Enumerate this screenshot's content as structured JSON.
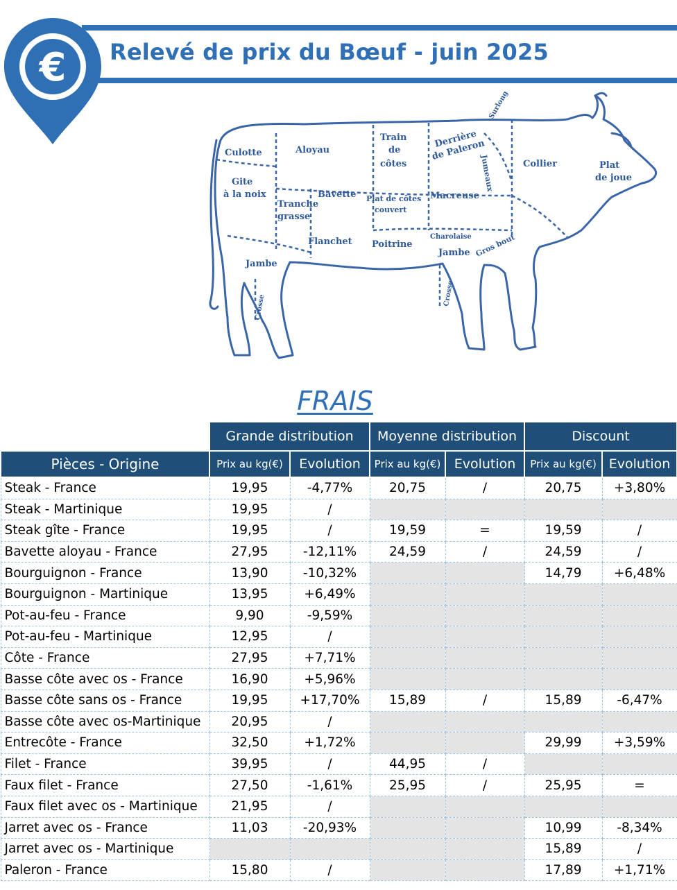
{
  "header": {
    "title": "Relevé de prix du Bœuf - juin 2025",
    "icon": "euro-pin-icon",
    "icon_symbol": "€",
    "accent_color": "#2e6fb6",
    "dark_header_color": "#1f4e79"
  },
  "cow_diagram": {
    "labels": {
      "culotte": "Culotte",
      "aloyau": "Aloyau",
      "train_de_cotes_1": "Train",
      "train_de_cotes_2": "de",
      "train_de_cotes_3": "côtes",
      "derriere_1": "Derrière",
      "derriere_2": "de Paleron",
      "surlonge": "Surlonge",
      "collier": "Collier",
      "plat_de_joue_1": "Plat",
      "plat_de_joue_2": "de joue",
      "gite_1": "Gite",
      "gite_2": "à la noix",
      "tranche_1": "Tranche",
      "tranche_2": "grasse",
      "bavette": "Bavette",
      "plat_de_cotes_1": "Plat de côtes",
      "plat_de_cotes_2": "couvert",
      "macreuse": "Macreuse",
      "jumeaux": "Jumeaux",
      "flanchet": "Flanchet",
      "poitrine": "Poitrine",
      "charolaise": "Charolaise",
      "gros_bout": "Gros bout",
      "jambe_rear": "Jambe",
      "jambe_front": "Jambe",
      "crosse_rear": "Crosse",
      "crosse_front": "Crosse"
    }
  },
  "section_title": "FRAIS",
  "table": {
    "groups": [
      "Grande distribution",
      "Moyenne distribution",
      "Discount"
    ],
    "piece_header": "Pièces - Origine",
    "price_header": "Prix au kg(€)",
    "evolution_header": "Evolution",
    "rows": [
      {
        "name": "Steak - France",
        "gd_prix": "19,95",
        "gd_evo": "-4,77%",
        "md_prix": "20,75",
        "md_evo": "/",
        "d_prix": "20,75",
        "d_evo": "+3,80%"
      },
      {
        "name": "Steak - Martinique",
        "gd_prix": "19,95",
        "gd_evo": "/",
        "md_prix": "",
        "md_evo": "",
        "d_prix": "",
        "d_evo": ""
      },
      {
        "name": "Steak gîte  - France",
        "gd_prix": "19,95",
        "gd_evo": "/",
        "md_prix": "19,59",
        "md_evo": "=",
        "d_prix": "19,59",
        "d_evo": "/"
      },
      {
        "name": "Bavette aloyau  - France",
        "gd_prix": "27,95",
        "gd_evo": "-12,11%",
        "md_prix": "24,59",
        "md_evo": "/",
        "d_prix": "24,59",
        "d_evo": "/"
      },
      {
        "name": "Bourguignon  - France",
        "gd_prix": "13,90",
        "gd_evo": "-10,32%",
        "md_prix": "",
        "md_evo": "",
        "d_prix": "14,79",
        "d_evo": "+6,48%"
      },
      {
        "name": "Bourguignon - Martinique",
        "gd_prix": "13,95",
        "gd_evo": "+6,49%",
        "md_prix": "",
        "md_evo": "",
        "d_prix": "",
        "d_evo": ""
      },
      {
        "name": "Pot-au-feu  - France",
        "gd_prix": "9,90",
        "gd_evo": "-9,59%",
        "md_prix": "",
        "md_evo": "",
        "d_prix": "",
        "d_evo": ""
      },
      {
        "name": "Pot-au-feu - Martinique",
        "gd_prix": "12,95",
        "gd_evo": "/",
        "md_prix": "",
        "md_evo": "",
        "d_prix": "",
        "d_evo": ""
      },
      {
        "name": "Côte - France",
        "gd_prix": "27,95",
        "gd_evo": "+7,71%",
        "md_prix": "",
        "md_evo": "",
        "d_prix": "",
        "d_evo": ""
      },
      {
        "name": "Basse côte avec os - France",
        "gd_prix": "16,90",
        "gd_evo": "+5,96%",
        "md_prix": "",
        "md_evo": "",
        "d_prix": "",
        "d_evo": ""
      },
      {
        "name": "Basse côte sans os - France",
        "gd_prix": "19,95",
        "gd_evo": "+17,70%",
        "md_prix": "15,89",
        "md_evo": "/",
        "d_prix": "15,89",
        "d_evo": "-6,47%"
      },
      {
        "name": "Basse côte avec os-Martinique",
        "gd_prix": "20,95",
        "gd_evo": "/",
        "md_prix": "",
        "md_evo": "",
        "d_prix": "",
        "d_evo": ""
      },
      {
        "name": "Entrecôte  - France",
        "gd_prix": "32,50",
        "gd_evo": "+1,72%",
        "md_prix": "",
        "md_evo": "",
        "d_prix": "29,99",
        "d_evo": "+3,59%"
      },
      {
        "name": "Filet - France",
        "gd_prix": "39,95",
        "gd_evo": "/",
        "md_prix": "44,95",
        "md_evo": "/",
        "d_prix": "",
        "d_evo": ""
      },
      {
        "name": "Faux filet  - France",
        "gd_prix": "27,50",
        "gd_evo": "-1,61%",
        "md_prix": "25,95",
        "md_evo": "/",
        "d_prix": "25,95",
        "d_evo": "="
      },
      {
        "name": "Faux filet avec os - Martinique",
        "gd_prix": "21,95",
        "gd_evo": "/",
        "md_prix": "",
        "md_evo": "",
        "d_prix": "",
        "d_evo": ""
      },
      {
        "name": "Jarret avec os - France",
        "gd_prix": "11,03",
        "gd_evo": "-20,93%",
        "md_prix": "",
        "md_evo": "",
        "d_prix": "10,99",
        "d_evo": "-8,34%"
      },
      {
        "name": "Jarret avec os - Martinique",
        "gd_prix": "",
        "gd_evo": "",
        "md_prix": "",
        "md_evo": "",
        "d_prix": "15,89",
        "d_evo": "/"
      },
      {
        "name": "Paleron - France",
        "gd_prix": "15,80",
        "gd_evo": "/",
        "md_prix": "",
        "md_evo": "",
        "d_prix": "17,89",
        "d_evo": "+1,71%"
      }
    ]
  }
}
